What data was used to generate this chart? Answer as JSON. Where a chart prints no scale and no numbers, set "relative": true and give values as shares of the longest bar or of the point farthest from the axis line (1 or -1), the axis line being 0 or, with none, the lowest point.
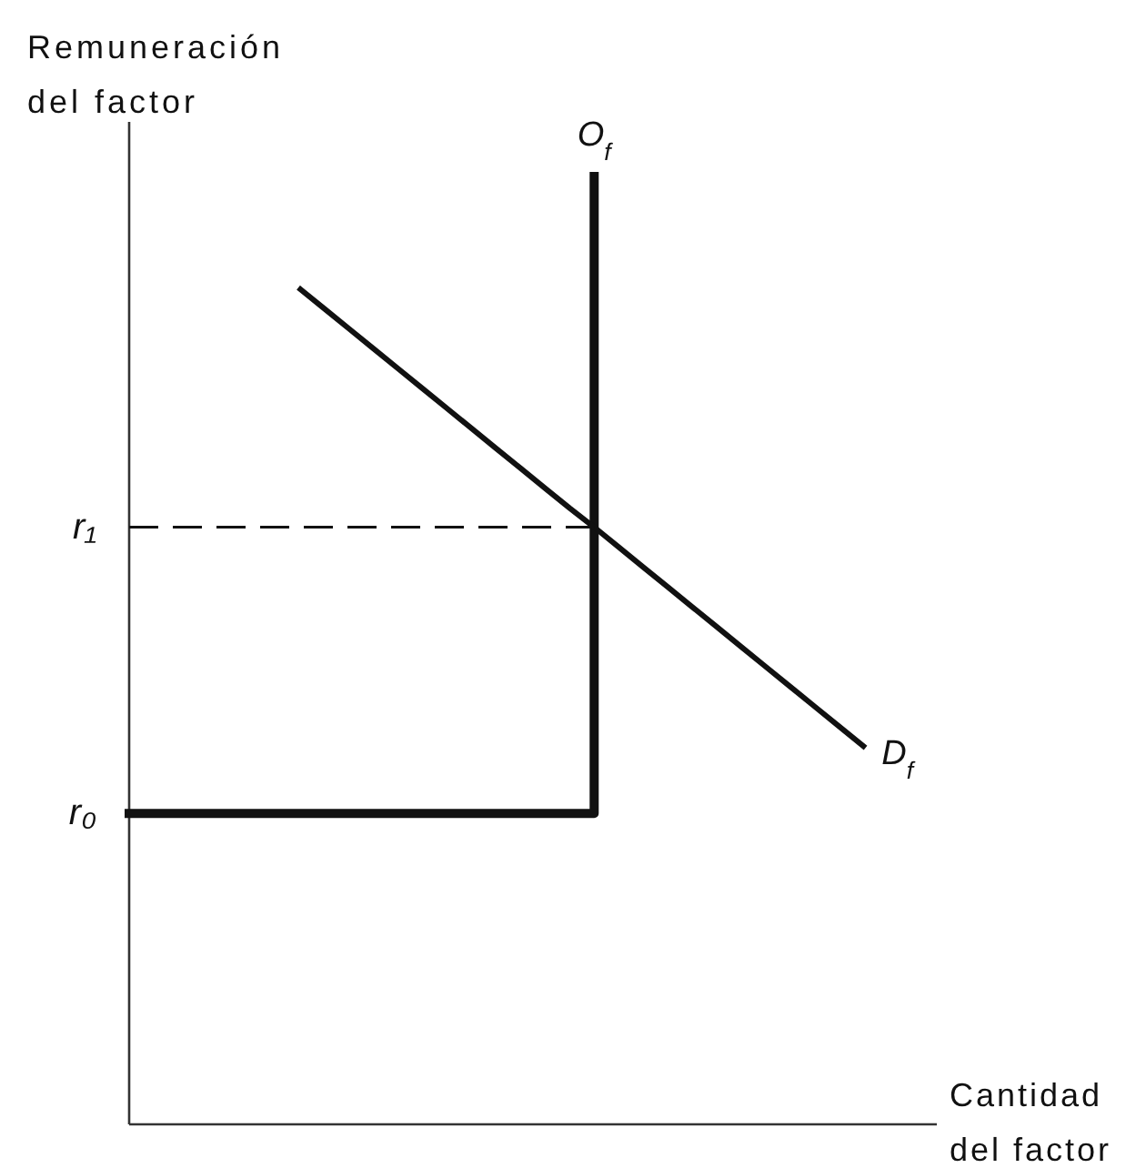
{
  "chart_data": {
    "type": "line",
    "relative": true,
    "xlabel": "Cantidad del factor",
    "ylabel": "Remuneración del factor",
    "line_style": "solid",
    "categories": [
      null,
      null,
      null,
      null,
      null,
      null,
      null,
      null,
      null,
      null,
      null,
      null,
      null,
      null,
      null,
      null,
      null,
      null,
      null,
      null,
      null,
      null,
      null,
      null,
      null,
      null,
      null,
      null,
      null,
      null,
      null,
      null,
      null,
      null
    ],
    "series": [
      {
        "name": "O$_{f}$",
        "type": "step",
        "color": "#111111",
        "values": [
          0.328,
          0.328,
          0.328,
          0.328,
          0.328,
          0.328,
          0.328,
          0.328,
          0.328,
          0.328,
          0.328,
          0.328,
          0.328,
          0.328,
          0.328,
          0.328,
          0.328,
          0.328,
          0.328,
          1,
          null,
          null,
          null,
          null,
          null,
          null,
          null,
          null,
          null,
          null,
          null,
          null,
          null,
          null
        ]
      },
      {
        "name": "D$_{f}$",
        "color": "#111111",
        "values": [
          null,
          null,
          null,
          null,
          null,
          null,
          null,
          0.881,
          0.86,
          0.839,
          0.818,
          0.797,
          0.776,
          0.755,
          0.734,
          0.713,
          0.692,
          0.671,
          0.65,
          0.63,
          0.609,
          0.588,
          0.567,
          0.546,
          0.525,
          0.504,
          0.483,
          0.462,
          0.441,
          0.42,
          0.399,
          null,
          null,
          null
        ]
      },
      {
        "color": "#111111",
        "line_style": "dashed",
        "values": [
          0.63,
          0.63,
          0.63,
          0.63,
          0.63,
          0.63,
          0.63,
          0.63,
          0.63,
          0.63,
          0.63,
          0.63,
          0.63,
          0.63,
          0.63,
          0.63,
          0.63,
          0.63,
          0.63,
          0.63,
          null,
          null,
          null,
          null,
          null,
          null,
          null,
          null,
          null,
          null,
          null,
          null,
          null,
          null
        ]
      }
    ],
    "annotations": [
      "r₁",
      "r₀"
    ]
  }
}
